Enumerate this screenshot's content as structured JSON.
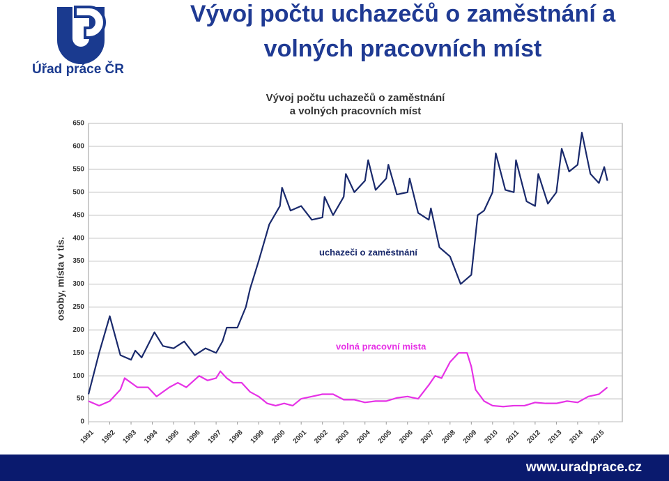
{
  "header": {
    "title_lines": [
      "Vývoj počtu uchazečů o zaměstnání a",
      "volných pracovních míst"
    ],
    "logo_text": "Úřad práce ČR"
  },
  "footer": {
    "url": "www.uradprace.cz"
  },
  "chart_data": {
    "type": "line",
    "title": [
      "Vývoj počtu uchazečů o zaměstnání",
      "a volných pracovních míst"
    ],
    "y_label": "osoby, místa v tis.",
    "xlim": [
      1991,
      2016.1
    ],
    "ylim": [
      0,
      650
    ],
    "xticks": [
      1991,
      1992,
      1993,
      1994,
      1995,
      1996,
      1997,
      1998,
      1999,
      2000,
      2001,
      2002,
      2003,
      2004,
      2005,
      2006,
      2007,
      2008,
      2009,
      2010,
      2011,
      2012,
      2013,
      2014,
      2015
    ],
    "yticks": [
      0,
      50,
      100,
      150,
      200,
      250,
      300,
      350,
      400,
      450,
      500,
      550,
      600,
      650
    ],
    "grid": true,
    "series": [
      {
        "name": "uchazeči o zaměstnání",
        "color": "#1a2a6c",
        "x": [
          1991,
          1991.5,
          1992,
          1992.5,
          1993,
          1993.2,
          1993.5,
          1994.1,
          1994.5,
          1995,
          1995.5,
          1996,
          1996.5,
          1997,
          1997.3,
          1997.5,
          1998,
          1998.4,
          1998.6,
          1999,
          1999.5,
          2000,
          2000.1,
          2000.5,
          2001,
          2001.5,
          2002,
          2002.1,
          2002.5,
          2003,
          2003.1,
          2003.5,
          2004,
          2004.15,
          2004.5,
          2005,
          2005.1,
          2005.5,
          2006,
          2006.1,
          2006.5,
          2007,
          2007.1,
          2007.5,
          2008,
          2008.5,
          2009,
          2009.3,
          2009.6,
          2010,
          2010.15,
          2010.6,
          2011,
          2011.1,
          2011.6,
          2012,
          2012.15,
          2012.6,
          2013,
          2013.25,
          2013.6,
          2014,
          2014.2,
          2014.6,
          2015,
          2015.25,
          2015.4
        ],
        "values": [
          60,
          150,
          230,
          145,
          135,
          155,
          140,
          195,
          165,
          160,
          175,
          145,
          160,
          150,
          175,
          205,
          205,
          250,
          290,
          350,
          430,
          470,
          510,
          460,
          470,
          440,
          445,
          490,
          450,
          490,
          540,
          500,
          525,
          570,
          505,
          530,
          560,
          495,
          500,
          530,
          455,
          440,
          465,
          380,
          360,
          300,
          320,
          450,
          460,
          500,
          585,
          505,
          500,
          570,
          480,
          470,
          540,
          475,
          500,
          595,
          545,
          560,
          630,
          540,
          520,
          555,
          525
        ]
      },
      {
        "name": "volná pracovní mista",
        "color": "#e632e6",
        "x": [
          1991,
          1991.5,
          1992,
          1992.5,
          1992.7,
          1993.3,
          1993.8,
          1994.2,
          1994.8,
          1995.2,
          1995.6,
          1996.2,
          1996.6,
          1997,
          1997.2,
          1997.5,
          1997.8,
          1998.2,
          1998.6,
          1999,
          1999.4,
          1999.8,
          2000.2,
          2000.6,
          2001,
          2001.5,
          2002,
          2002.5,
          2003,
          2003.5,
          2004,
          2004.5,
          2005,
          2005.5,
          2006,
          2006.5,
          2007,
          2007.3,
          2007.6,
          2008,
          2008.4,
          2008.8,
          2009,
          2009.2,
          2009.6,
          2010,
          2010.5,
          2011,
          2011.5,
          2012,
          2012.5,
          2013,
          2013.5,
          2014,
          2014.5,
          2015,
          2015.4
        ],
        "values": [
          45,
          35,
          45,
          70,
          95,
          75,
          75,
          55,
          75,
          85,
          75,
          100,
          90,
          95,
          110,
          95,
          85,
          85,
          65,
          55,
          40,
          35,
          40,
          35,
          50,
          55,
          60,
          60,
          48,
          48,
          42,
          45,
          45,
          52,
          55,
          50,
          80,
          100,
          95,
          130,
          150,
          150,
          120,
          70,
          45,
          35,
          33,
          35,
          35,
          42,
          40,
          40,
          45,
          42,
          55,
          60,
          75
        ]
      }
    ]
  }
}
